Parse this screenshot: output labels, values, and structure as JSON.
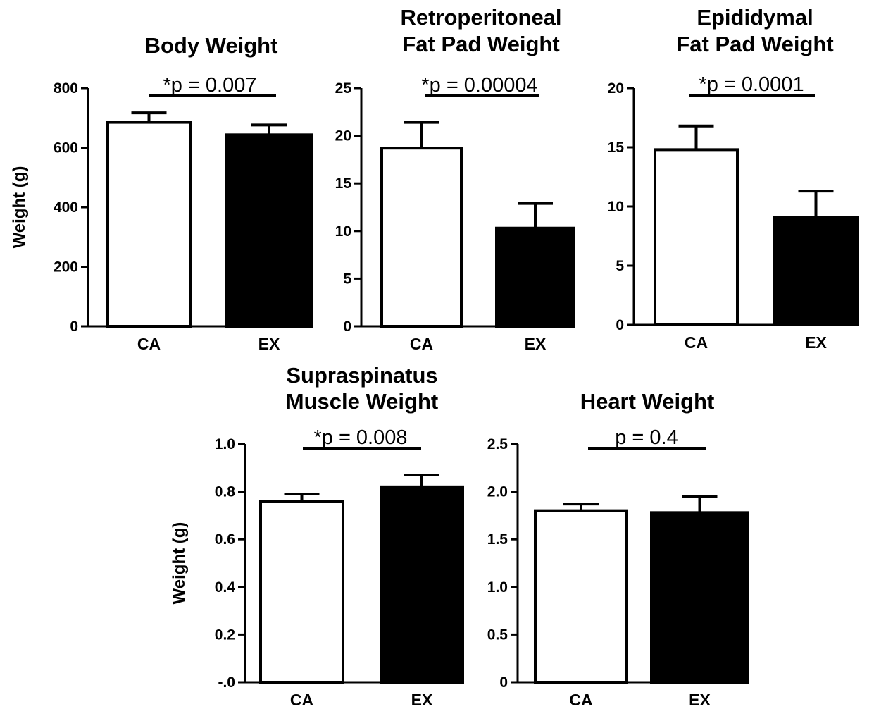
{
  "chart_data": [
    {
      "type": "bar",
      "title": [
        "Body Weight"
      ],
      "ylabel": "Weight  (g)",
      "categories": [
        "CA",
        "EX"
      ],
      "values": [
        685,
        643
      ],
      "errors": [
        32,
        33
      ],
      "bar_colors": [
        "#ffffff",
        "#000000"
      ],
      "ylim": [
        0,
        800
      ],
      "yticks": [
        "0",
        "200",
        "400",
        "600",
        "800"
      ],
      "annotation": "*p = 0.007"
    },
    {
      "type": "bar",
      "title": [
        "Retroperitoneal",
        "Fat Pad Weight"
      ],
      "ylabel": "",
      "categories": [
        "CA",
        "EX"
      ],
      "values": [
        18.7,
        10.3
      ],
      "errors": [
        2.7,
        2.6
      ],
      "bar_colors": [
        "#ffffff",
        "#000000"
      ],
      "ylim": [
        0,
        25
      ],
      "yticks": [
        "0",
        "5",
        "10",
        "15",
        "20",
        "25"
      ],
      "annotation": "*p = 0.00004"
    },
    {
      "type": "bar",
      "title": [
        "Epididymal",
        "Fat Pad Weight"
      ],
      "ylabel": "",
      "categories": [
        "CA",
        "EX"
      ],
      "values": [
        14.8,
        9.1
      ],
      "errors": [
        2.0,
        2.2
      ],
      "bar_colors": [
        "#ffffff",
        "#000000"
      ],
      "ylim": [
        0,
        20
      ],
      "yticks": [
        "0",
        "5",
        "10",
        "15",
        "20"
      ],
      "annotation": "*p = 0.0001"
    },
    {
      "type": "bar",
      "title": [
        "Supraspinatus",
        "Muscle Weight"
      ],
      "ylabel": "Weight  (g)",
      "categories": [
        "CA",
        "EX"
      ],
      "values": [
        0.76,
        0.82
      ],
      "errors": [
        0.03,
        0.05
      ],
      "bar_colors": [
        "#ffffff",
        "#000000"
      ],
      "ylim": [
        0,
        1.0
      ],
      "yticks": [
        "-.0",
        "0.2",
        "0.4",
        "0.6",
        "0.8",
        "1.0"
      ],
      "annotation": "*p = 0.008"
    },
    {
      "type": "bar",
      "title": [
        "Heart Weight"
      ],
      "ylabel": "",
      "categories": [
        "CA",
        "EX"
      ],
      "values": [
        1.8,
        1.78
      ],
      "errors": [
        0.07,
        0.17
      ],
      "bar_colors": [
        "#ffffff",
        "#000000"
      ],
      "ylim": [
        0,
        2.5
      ],
      "yticks": [
        "0",
        "0.5",
        "1.0",
        "1.5",
        "2.0",
        "2.5"
      ],
      "annotation": "p = 0.4"
    }
  ]
}
